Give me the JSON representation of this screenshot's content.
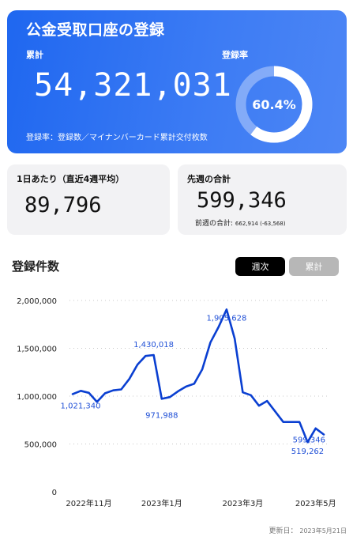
{
  "header": {
    "title": "公金受取口座の登録",
    "total_label": "累計",
    "total_value": "54,321,031",
    "rate_label": "登録率",
    "rate_value": "60.4%",
    "rate_percent": 60.4,
    "note": "登録率：登録数／マイナンバーカード累計交付枚数"
  },
  "cards": {
    "daily": {
      "label": "1日あたり（直近4週平均）",
      "value": "89,796"
    },
    "last_week": {
      "label": "先週の合計",
      "value": "599,346",
      "prev_label": "前週の合計:",
      "prev_value": "662,914 (-63,568)"
    }
  },
  "section": {
    "title": "登録件数",
    "weekly_button": "週次",
    "cumulative_button": "累計"
  },
  "colors": {
    "accent": "#1f67f0",
    "line": "#0a3fd1",
    "label": "#1f4fd6"
  },
  "chart_data": {
    "type": "line",
    "title": "",
    "xlabel": "",
    "ylabel": "",
    "ylim": [
      0,
      2000000
    ],
    "yticks": [
      "2,000,000",
      "1,500,000",
      "1,000,000",
      "500,000",
      "0"
    ],
    "ytick_values": [
      2000000,
      1500000,
      1000000,
      500000,
      0
    ],
    "xticks": [
      "2022年11月",
      "2023年1月",
      "2023年3月",
      "2023年5月"
    ],
    "xtick_index": [
      2,
      11,
      21,
      30
    ],
    "grid": true,
    "series": [
      {
        "values": [
          1021340,
          1055000,
          1035000,
          940000,
          1030000,
          1060000,
          1070000,
          1180000,
          1330000,
          1420000,
          1430018,
          971988,
          990000,
          1050000,
          1100000,
          1130000,
          1280000,
          1560000,
          1720000,
          1905628,
          1600000,
          1040000,
          1010000,
          900000,
          950000,
          840000,
          730000,
          730000,
          730000,
          519262,
          662914,
          599346
        ]
      }
    ],
    "annotations": [
      {
        "index": 0,
        "text": "1,021,340"
      },
      {
        "index": 10,
        "text": "1,430,018"
      },
      {
        "index": 11,
        "text": "971,988"
      },
      {
        "index": 19,
        "text": "1,905,628"
      },
      {
        "index": 29,
        "text": "519,262"
      },
      {
        "index": 31,
        "text": "599,346"
      }
    ]
  },
  "footer": {
    "updated_label": "更新日：",
    "updated_value": "2023年5月21日"
  }
}
